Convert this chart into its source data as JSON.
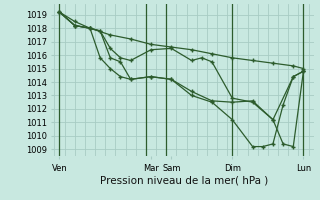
{
  "background_color": "#c8e8e0",
  "grid_color": "#a8ccc4",
  "line_color": "#2d5c2d",
  "ylim": [
    1008.5,
    1019.8
  ],
  "yticks": [
    1009,
    1010,
    1011,
    1012,
    1013,
    1014,
    1015,
    1016,
    1017,
    1018,
    1019
  ],
  "xlabel": "Pression niveau de la mer( hPa )",
  "xlabel_fontsize": 7.5,
  "tick_fontsize": 6,
  "xtick_labels": [
    "Ven",
    "Mar",
    "Sam",
    "Dim",
    "Lun"
  ],
  "xtick_positions": [
    0,
    9,
    11,
    17,
    24
  ],
  "xlim": [
    -0.5,
    25
  ],
  "vline_positions": [
    0,
    8.5,
    10.5,
    17,
    24
  ],
  "vline_color": "#2d5c2d",
  "series": [
    {
      "x": [
        0,
        1.5,
        3,
        5,
        7,
        9,
        11,
        13,
        15,
        17,
        19,
        21,
        23,
        24
      ],
      "y": [
        1019.2,
        1018.5,
        1018.0,
        1017.5,
        1017.2,
        1016.8,
        1016.6,
        1016.4,
        1016.1,
        1015.8,
        1015.6,
        1015.4,
        1015.2,
        1015.0
      ]
    },
    {
      "x": [
        0,
        1.5,
        3,
        4,
        5,
        6,
        7,
        9,
        11,
        13,
        14,
        15,
        17,
        19,
        21,
        23,
        24
      ],
      "y": [
        1019.2,
        1018.2,
        1018.0,
        1017.8,
        1016.5,
        1015.8,
        1015.6,
        1016.4,
        1016.5,
        1015.6,
        1015.8,
        1015.5,
        1012.8,
        1012.5,
        1011.2,
        1014.4,
        1014.8
      ]
    },
    {
      "x": [
        0,
        1.5,
        3,
        4,
        5,
        6,
        7,
        9,
        11,
        13,
        15,
        17,
        19,
        21,
        22,
        23,
        24
      ],
      "y": [
        1019.2,
        1018.2,
        1018.0,
        1015.8,
        1015.0,
        1014.4,
        1014.2,
        1014.4,
        1014.2,
        1013.3,
        1012.6,
        1012.5,
        1012.6,
        1011.2,
        1009.4,
        1009.2,
        1014.8
      ]
    },
    {
      "x": [
        0,
        1.5,
        3,
        4,
        5,
        6,
        7,
        9,
        11,
        13,
        15,
        17,
        19,
        20,
        21,
        22,
        23,
        24
      ],
      "y": [
        1019.2,
        1018.2,
        1018.0,
        1017.8,
        1015.8,
        1015.5,
        1014.2,
        1014.4,
        1014.2,
        1013.0,
        1012.5,
        1011.2,
        1009.2,
        1009.2,
        1009.4,
        1012.3,
        1014.4,
        1014.8
      ]
    }
  ]
}
